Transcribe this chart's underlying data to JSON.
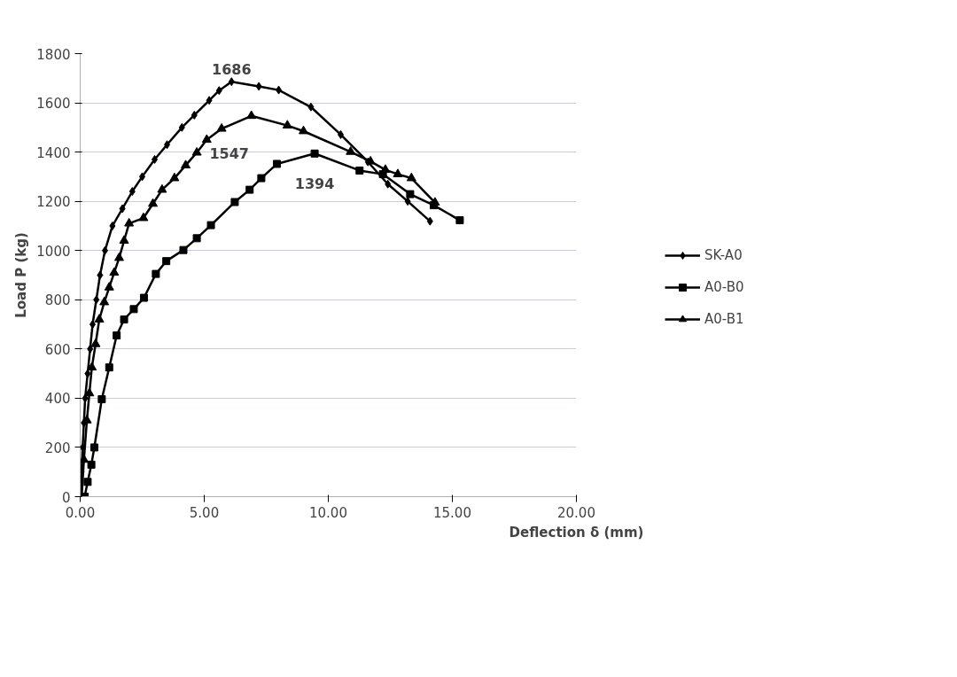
{
  "chart_data": {
    "type": "line",
    "xlabel": "Deflection δ (mm)",
    "ylabel": "Load P (kg)",
    "xlim": [
      0,
      20
    ],
    "xticks": [
      {
        "value": 0,
        "label": "0.00"
      },
      {
        "value": 5,
        "label": "5.00"
      },
      {
        "value": 10,
        "label": "10.00"
      },
      {
        "value": 15,
        "label": "15.00"
      },
      {
        "value": 20,
        "label": "20.00"
      }
    ],
    "ylim": [
      0,
      1800
    ],
    "yticks": [
      0,
      200,
      400,
      600,
      800,
      1000,
      1200,
      1400,
      1600,
      1800
    ],
    "grid": "y",
    "legend": "right",
    "line_style": "solid",
    "series": [
      {
        "name": "SK-A0",
        "color": "#000000",
        "marker": "diamond",
        "x": [
          0,
          0.05,
          0.1,
          0.15,
          0.2,
          0.3,
          0.4,
          0.5,
          0.65,
          0.8,
          1.0,
          1.3,
          1.7,
          2.1,
          2.5,
          3.0,
          3.5,
          4.1,
          4.6,
          5.2,
          5.6,
          6.1,
          7.2,
          8.0,
          9.3,
          10.5,
          11.6,
          12.4,
          13.2,
          14.1
        ],
        "values": [
          0,
          100,
          200,
          300,
          400,
          500,
          600,
          700,
          800,
          900,
          1000,
          1100,
          1170,
          1240,
          1300,
          1370,
          1430,
          1500,
          1550,
          1610,
          1650,
          1686,
          1667,
          1652,
          1583,
          1471,
          1360,
          1270,
          1200,
          1119
        ]
      },
      {
        "name": "A0-B0",
        "color": "#000000",
        "marker": "square",
        "x": [
          0.18,
          0.3,
          0.45,
          0.57,
          0.87,
          1.17,
          1.47,
          1.77,
          2.16,
          2.57,
          3.05,
          3.47,
          4.16,
          4.7,
          5.27,
          6.23,
          6.83,
          7.3,
          7.93,
          9.45,
          11.26,
          12.2,
          13.3,
          14.25,
          15.3
        ],
        "values": [
          0,
          60,
          130,
          200,
          396,
          525,
          655,
          720,
          762,
          808,
          905,
          957,
          1002,
          1050,
          1103,
          1197,
          1247,
          1294,
          1352,
          1394,
          1325,
          1310,
          1229,
          1184,
          1123
        ]
      },
      {
        "name": "A0-B1",
        "color": "#000000",
        "marker": "triangle",
        "x": [
          0.06,
          0.15,
          0.27,
          0.37,
          0.47,
          0.62,
          0.77,
          0.97,
          1.17,
          1.37,
          1.57,
          1.77,
          1.97,
          2.55,
          2.93,
          3.3,
          3.8,
          4.25,
          4.7,
          5.1,
          5.7,
          6.9,
          8.35,
          9.0,
          10.9,
          11.7,
          12.3,
          12.8,
          13.35,
          14.3
        ],
        "values": [
          0,
          150,
          310,
          420,
          525,
          620,
          720,
          790,
          850,
          910,
          970,
          1040,
          1110,
          1132,
          1190,
          1247,
          1294,
          1346,
          1398,
          1450,
          1495,
          1547,
          1508,
          1485,
          1401,
          1362,
          1328,
          1310,
          1294,
          1195
        ]
      }
    ],
    "annotations": [
      {
        "text": "1686",
        "x": 6.1,
        "y": 1686
      },
      {
        "text": "1547",
        "x": 6.9,
        "y": 1547
      },
      {
        "text": "1394",
        "x": 9.45,
        "y": 1394
      }
    ]
  }
}
